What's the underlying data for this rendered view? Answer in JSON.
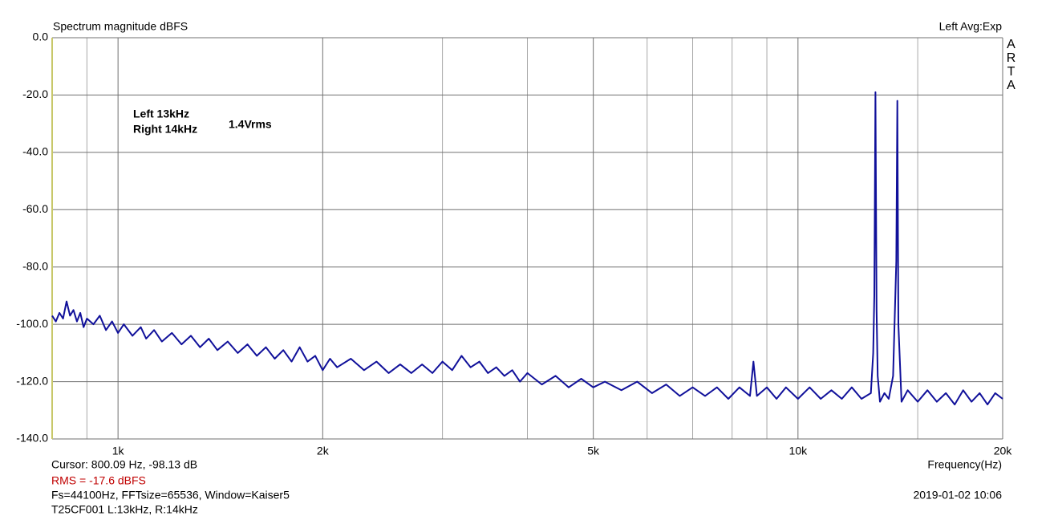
{
  "chart_data": {
    "type": "line",
    "title": "Spectrum magnitude dBFS",
    "channel_label": "Left  Avg:Exp",
    "brand": "ARTA",
    "x_label": "Frequency(Hz)",
    "annotations": [
      "Left 13kHz",
      "Right 14kHz",
      "1.4Vrms"
    ],
    "footer": [
      "Cursor: 800.09 Hz, -98.13 dB",
      "RMS =  -17.6 dBFS",
      "Fs=44100Hz, FFTsize=65536, Window=Kaiser5",
      "T25CF001 L:13kHz, R:14kHz"
    ],
    "timestamp": "2019-01-02  10:06",
    "xscale": "log",
    "xlim": [
      800,
      20000
    ],
    "ylim": [
      -140,
      0
    ],
    "xticks": [
      {
        "value": 1000,
        "label": "1k"
      },
      {
        "value": 2000,
        "label": "2k"
      },
      {
        "value": 5000,
        "label": "5k"
      },
      {
        "value": 10000,
        "label": "10k"
      },
      {
        "value": 20000,
        "label": "20k"
      }
    ],
    "x_minor_grid": [
      900,
      3000,
      4000,
      6000,
      7000,
      8000,
      9000,
      15000
    ],
    "yticks": [
      {
        "value": 0,
        "label": "0.0"
      },
      {
        "value": -20,
        "label": "-20.0"
      },
      {
        "value": -40,
        "label": "-40.0"
      },
      {
        "value": -60,
        "label": "-60.0"
      },
      {
        "value": -80,
        "label": "-80.0"
      },
      {
        "value": -100,
        "label": "-100.0"
      },
      {
        "value": -120,
        "label": "-120.0"
      },
      {
        "value": -140,
        "label": "-140.0"
      }
    ],
    "grid": true,
    "color": "#10109a",
    "x": [
      800,
      810,
      820,
      830,
      840,
      850,
      860,
      870,
      880,
      890,
      900,
      920,
      940,
      960,
      980,
      1000,
      1020,
      1050,
      1080,
      1100,
      1130,
      1160,
      1200,
      1240,
      1280,
      1320,
      1360,
      1400,
      1450,
      1500,
      1550,
      1600,
      1650,
      1700,
      1750,
      1800,
      1850,
      1900,
      1950,
      2000,
      2050,
      2100,
      2200,
      2300,
      2400,
      2500,
      2600,
      2700,
      2800,
      2900,
      3000,
      3100,
      3200,
      3300,
      3400,
      3500,
      3600,
      3700,
      3800,
      3900,
      4000,
      4200,
      4400,
      4600,
      4800,
      5000,
      5200,
      5500,
      5800,
      6100,
      6400,
      6700,
      7000,
      7300,
      7600,
      7900,
      8200,
      8500,
      8600,
      8700,
      9000,
      9300,
      9600,
      10000,
      10400,
      10800,
      11200,
      11600,
      12000,
      12400,
      12800,
      12900,
      12950,
      13000,
      13050,
      13100,
      13200,
      13400,
      13600,
      13800,
      13950,
      14000,
      14050,
      14200,
      14500,
      15000,
      15500,
      16000,
      16500,
      17000,
      17500,
      18000,
      18500,
      19000,
      19500,
      20000
    ],
    "values": [
      -97,
      -99,
      -96,
      -98,
      -92,
      -97,
      -95,
      -99,
      -96,
      -101,
      -98,
      -100,
      -97,
      -102,
      -99,
      -103,
      -100,
      -104,
      -101,
      -105,
      -102,
      -106,
      -103,
      -107,
      -104,
      -108,
      -105,
      -109,
      -106,
      -110,
      -107,
      -111,
      -108,
      -112,
      -109,
      -113,
      -108,
      -113,
      -111,
      -116,
      -112,
      -115,
      -112,
      -116,
      -113,
      -117,
      -114,
      -117,
      -114,
      -117,
      -113,
      -116,
      -111,
      -115,
      -113,
      -117,
      -115,
      -118,
      -116,
      -120,
      -117,
      -121,
      -118,
      -122,
      -119,
      -122,
      -120,
      -123,
      -120,
      -124,
      -121,
      -125,
      -122,
      -125,
      -122,
      -126,
      -122,
      -125,
      -113,
      -125,
      -122,
      -126,
      -122,
      -126,
      -122,
      -126,
      -123,
      -126,
      -122,
      -126,
      -124,
      -110,
      -90,
      -19,
      -95,
      -118,
      -127,
      -124,
      -126,
      -118,
      -78,
      -22,
      -100,
      -127,
      -123,
      -127,
      -123,
      -127,
      -124,
      -128,
      -123,
      -127,
      -124,
      -128,
      -124,
      -126
    ]
  }
}
